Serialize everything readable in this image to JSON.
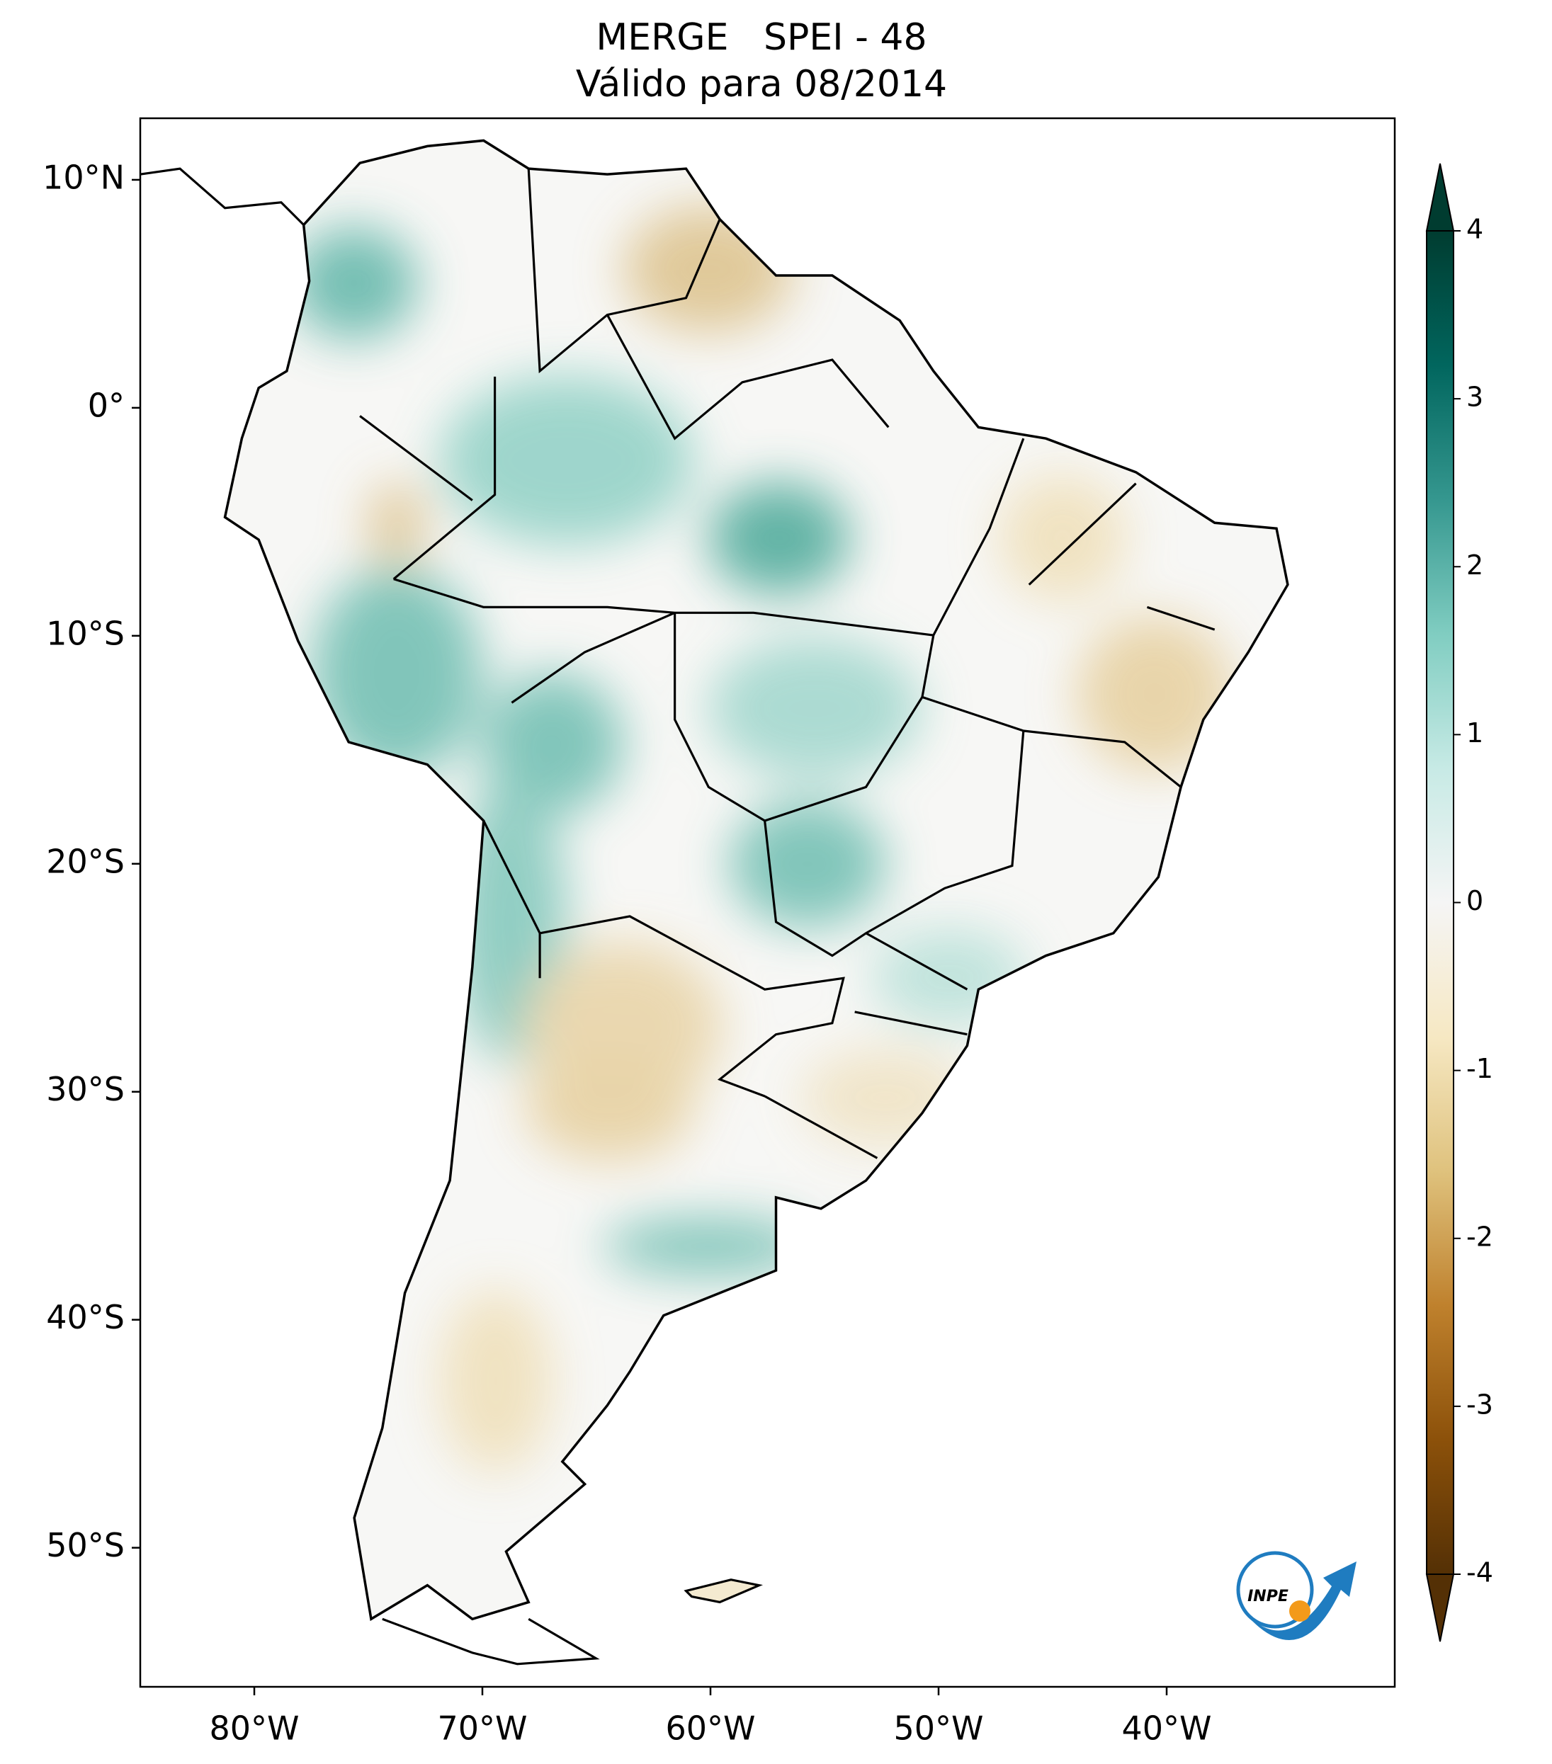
{
  "chart_data": {
    "type": "map",
    "title": "MERGE   SPEI - 48",
    "subtitle": "Válido para 08/2014",
    "xlim": [
      -85,
      -30
    ],
    "ylim": [
      -56.1,
      12.7
    ],
    "xticks": [
      {
        "value": -80,
        "label": "80°W"
      },
      {
        "value": -70,
        "label": "70°W"
      },
      {
        "value": -60,
        "label": "60°W"
      },
      {
        "value": -50,
        "label": "50°W"
      },
      {
        "value": -40,
        "label": "40°W"
      }
    ],
    "yticks": [
      {
        "value": 10,
        "label": "10°N"
      },
      {
        "value": 0,
        "label": "0°"
      },
      {
        "value": -10,
        "label": "10°S"
      },
      {
        "value": -20,
        "label": "20°S"
      },
      {
        "value": -30,
        "label": "30°S"
      },
      {
        "value": -40,
        "label": "40°S"
      },
      {
        "value": -50,
        "label": "50°S"
      }
    ],
    "colorbar": {
      "lim": [
        -4,
        4
      ],
      "ticks": [
        -4,
        -3,
        -2,
        -1,
        0,
        1,
        2,
        3,
        4
      ],
      "colors": [
        "#543005",
        "#8c510a",
        "#bf812d",
        "#dfc27d",
        "#f6e8c3",
        "#f5f5f5",
        "#c7eae5",
        "#80cdc1",
        "#35978f",
        "#01665e",
        "#003c30"
      ]
    },
    "logo_text": "INPE"
  }
}
